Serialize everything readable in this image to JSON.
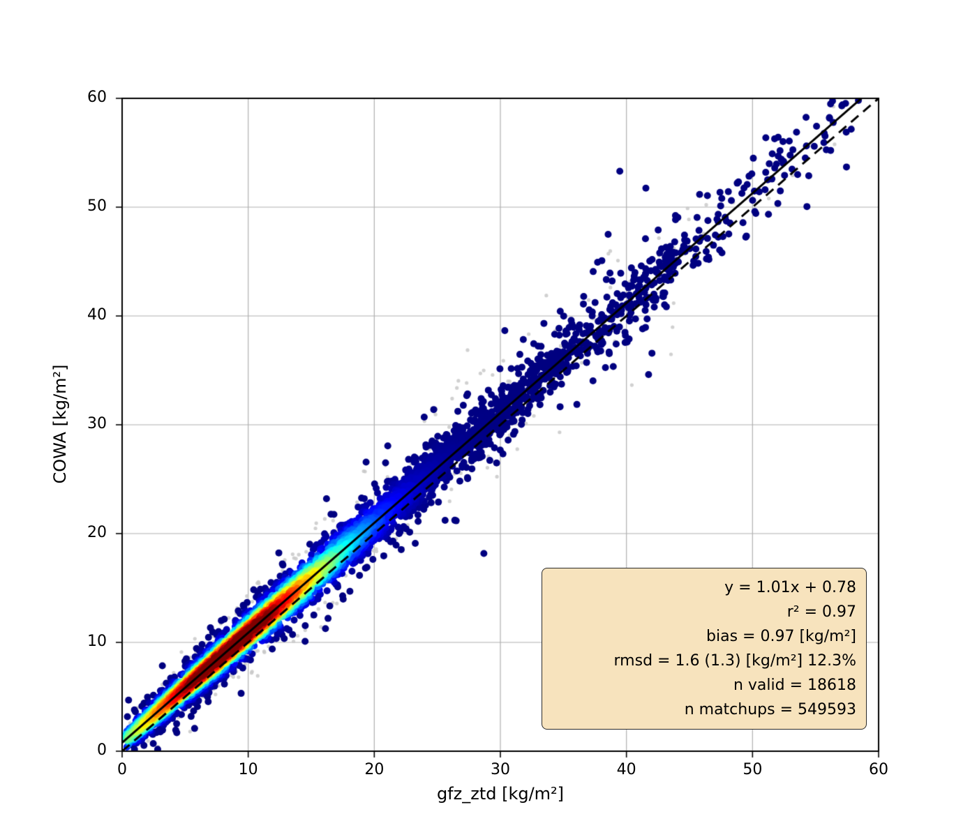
{
  "chart_data": {
    "type": "scatter",
    "title": "",
    "xlabel": "gfz_ztd [kg/m²]",
    "ylabel": "COWA [kg/m²]",
    "xlim": [
      0,
      60
    ],
    "ylim": [
      0,
      60
    ],
    "xticks": [
      0,
      10,
      20,
      30,
      40,
      50,
      60
    ],
    "xtick_labels": [
      "0",
      "10",
      "20",
      "30",
      "40",
      "50",
      "60"
    ],
    "yticks": [
      0,
      10,
      20,
      30,
      40,
      50,
      60
    ],
    "ytick_labels": [
      "0",
      "10",
      "20",
      "30",
      "40",
      "50",
      "60"
    ],
    "grid": true,
    "grid_color": "#b0b0b0",
    "colormap": "jet",
    "point_cloud": {
      "x_range": [
        0.3,
        58.5
      ],
      "density_peak_x": 8.5,
      "low_density_point_color": "#00008b",
      "background_point_color": "#c9c9c9"
    },
    "fit_line": {
      "label": "y = 1.01x + 0.78",
      "slope": 1.01,
      "intercept": 0.78,
      "style": "solid",
      "color": "#000000"
    },
    "identity_line": {
      "slope": 1,
      "intercept": 0,
      "style": "dashed",
      "color": "#000000"
    },
    "stats_lines": [
      "y = 1.01x + 0.78",
      "r² = 0.97",
      "bias = 0.97 [kg/m²]",
      "rmsd = 1.6 (1.3) [kg/m²] 12.3%",
      "n valid = 18618",
      "n matchups = 549593"
    ],
    "stats_values": {
      "slope": 1.01,
      "intercept": 0.78,
      "r2": 0.97,
      "bias": 0.97,
      "rmsd": 1.6,
      "rmsd_alt": 1.3,
      "rmsd_pct": "12.3%",
      "n_valid": 18618,
      "n_matchups": 549593
    },
    "stats_box_style": {
      "background": "#f7e3bd",
      "border": "#2a2a2a"
    }
  }
}
